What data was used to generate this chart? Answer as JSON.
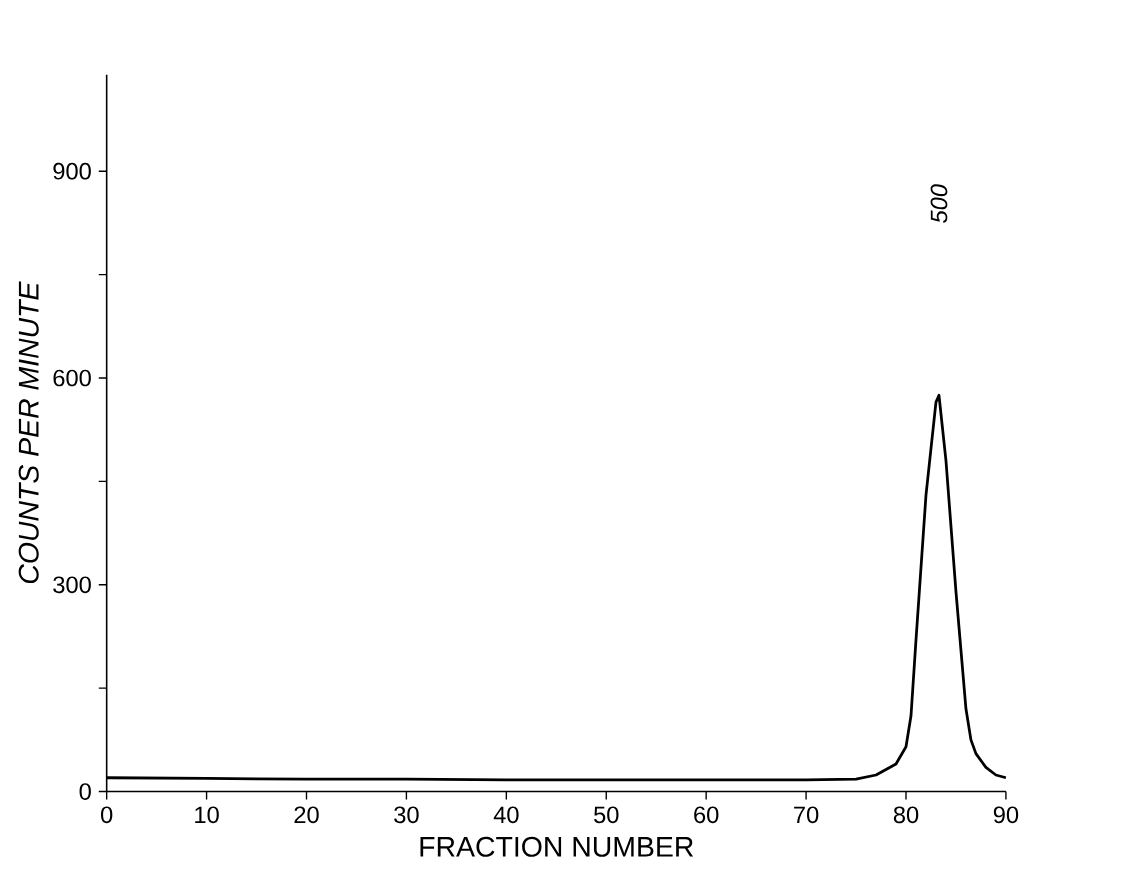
{
  "chart_data": {
    "type": "line",
    "xlabel": "FRACTION NUMBER",
    "ylabel": "COUNTS PER MINUTE",
    "x": [
      0,
      10,
      20,
      30,
      40,
      50,
      60,
      70,
      75,
      77,
      79,
      80,
      80.5,
      81,
      82,
      83,
      83.3,
      84,
      85,
      86,
      86.5,
      87,
      88,
      89,
      90
    ],
    "values": [
      20,
      19,
      18,
      18,
      17,
      17,
      17,
      17,
      18,
      24,
      40,
      65,
      110,
      220,
      430,
      565,
      575,
      480,
      290,
      120,
      75,
      55,
      35,
      24,
      20
    ],
    "color": "#000000",
    "xlim": [
      0,
      90
    ],
    "xticks": [
      0,
      10,
      20,
      30,
      40,
      50,
      60,
      70,
      80,
      90
    ],
    "ylim": [
      0,
      1040
    ],
    "yticks": [
      0,
      {
        "value": 150,
        "label": null
      },
      300,
      {
        "value": 450,
        "label": null
      },
      600,
      {
        "value": 750,
        "label": null
      },
      900
    ],
    "annotations": [
      "500"
    ],
    "marker": "none",
    "line_style": "solid"
  }
}
